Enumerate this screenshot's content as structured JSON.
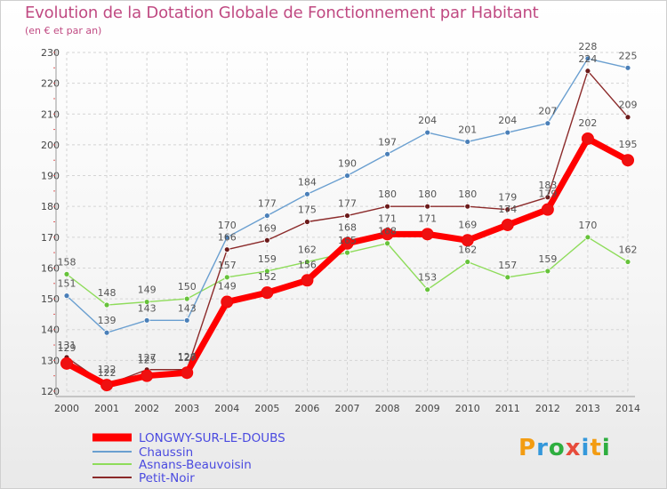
{
  "title": "Evolution de la Dotation Globale de Fonctionnement par Habitant",
  "subtitle": "(en € et par an)",
  "brand": {
    "text": "Proxiti",
    "letters": [
      {
        "ch": "P",
        "color": "#f39c12"
      },
      {
        "ch": "r",
        "color": "#3498db"
      },
      {
        "ch": "o",
        "color": "#2eae3f"
      },
      {
        "ch": "x",
        "color": "#e74c3c"
      },
      {
        "ch": "i",
        "color": "#3498db"
      },
      {
        "ch": "t",
        "color": "#f39c12"
      },
      {
        "ch": "i",
        "color": "#2eae3f"
      }
    ]
  },
  "chart_data": {
    "type": "line",
    "title": "Evolution de la Dotation Globale de Fonctionnement par Habitant",
    "subtitle": "(en € et par an)",
    "xlabel": "",
    "ylabel": "",
    "x": [
      "2000",
      "2001",
      "2002",
      "2003",
      "2004",
      "2005",
      "2006",
      "2007",
      "2008",
      "2009",
      "2010",
      "2011",
      "2012",
      "2013",
      "2014"
    ],
    "ylim": [
      120,
      230
    ],
    "yticks": [
      120,
      130,
      140,
      150,
      160,
      170,
      180,
      190,
      200,
      210,
      220,
      230
    ],
    "grid": true,
    "legend_position": "bottom-left",
    "series": [
      {
        "name": "LONGWY-SUR-LE-DOUBS",
        "color": "#ff0000",
        "marker_color": "#ee1111",
        "values": [
          129,
          122,
          125,
          126,
          149,
          152,
          156,
          168,
          171,
          171,
          169,
          174,
          179,
          202,
          195
        ],
        "labels": [
          "129",
          "122",
          "125",
          "126",
          "149",
          "152",
          "156",
          "168",
          "171",
          "171",
          "169",
          "174",
          "179",
          "202",
          "195"
        ]
      },
      {
        "name": "Chaussin",
        "color": "#6a9fd0",
        "marker_color": "#4a7fb8",
        "values": [
          151,
          139,
          143,
          143,
          170,
          177,
          184,
          190,
          197,
          204,
          201,
          204,
          207,
          228,
          225
        ],
        "labels": [
          "151",
          "139",
          "143",
          "143",
          "170",
          "177",
          "184",
          "190",
          "197",
          "204",
          "201",
          "204",
          "207",
          "228",
          "225"
        ]
      },
      {
        "name": "Asnans-Beauvoisin",
        "color": "#8edc5a",
        "marker_color": "#66c23a",
        "values": [
          158,
          148,
          149,
          150,
          157,
          159,
          162,
          165,
          168,
          153,
          162,
          157,
          159,
          170,
          162
        ],
        "labels": [
          "158",
          "148",
          "149",
          "150",
          "157",
          "159",
          "162",
          "165",
          "168",
          "153",
          "162",
          "157",
          "159",
          "170",
          "162"
        ]
      },
      {
        "name": "Petit-Noir",
        "color": "#8b2a2a",
        "marker_color": "#6b1a1a",
        "values": [
          131,
          122,
          127,
          127,
          166,
          169,
          175,
          177,
          180,
          180,
          180,
          179,
          183,
          224,
          209
        ],
        "labels": [
          "131",
          "122",
          "127",
          "127",
          "166",
          "169",
          "175",
          "177",
          "180",
          "180",
          "180",
          "179",
          "183",
          "224",
          "209"
        ]
      }
    ]
  }
}
